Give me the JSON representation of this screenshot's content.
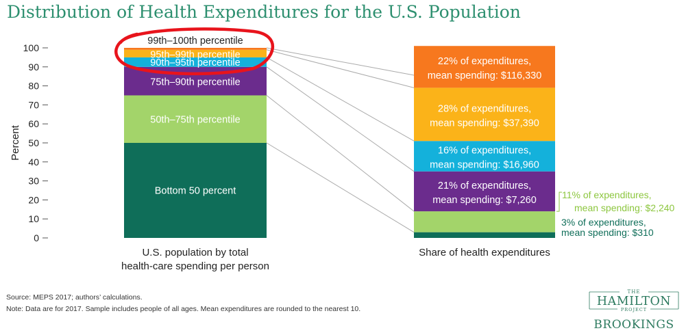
{
  "chart_data": {
    "type": "bar",
    "subtype": "stacked-100-percent",
    "title": "Distribution of Health Expenditures for the U.S. Population",
    "ylabel": "Percent",
    "ylim": [
      0,
      100
    ],
    "yticks": [
      0,
      10,
      20,
      30,
      40,
      50,
      60,
      70,
      80,
      90,
      100
    ],
    "categories": [
      "U.S. population by total health-care spending per person",
      "Share of health expenditures"
    ],
    "category_lines": [
      [
        "U.S. population by total",
        "health-care spending per person"
      ],
      [
        "Share of health expenditures"
      ]
    ],
    "series": [
      {
        "name": "Bottom 50 percent",
        "color": "#0f6e59",
        "population": 50,
        "share": 3,
        "mean_spending": 310,
        "share_lines": [
          "3% of expenditures,",
          "mean spending: $310"
        ],
        "share_label_outside": true,
        "share_label_color": "#0f6e59"
      },
      {
        "name": "50th–75th percentile",
        "color": "#a3d46a",
        "population": 25,
        "share": 11,
        "mean_spending": 2240,
        "share_lines": [
          "11% of expenditures,",
          "mean spending: $2,240"
        ],
        "share_label_outside": true,
        "share_label_color": "#8cc63e"
      },
      {
        "name": "75th–90th percentile",
        "color": "#6b2c8d",
        "population": 15,
        "share": 21,
        "mean_spending": 7260,
        "share_lines": [
          "21% of expenditures,",
          "mean spending: $7,260"
        ],
        "share_label_outside": false
      },
      {
        "name": "90th–95th percentile",
        "color": "#14b1db",
        "population": 5,
        "share": 16,
        "mean_spending": 16960,
        "share_lines": [
          "16% of expenditures,",
          "mean spending: $16,960"
        ],
        "share_label_outside": false
      },
      {
        "name": "95th–99th percentile",
        "color": "#fbb319",
        "population": 4,
        "share": 28,
        "mean_spending": 37390,
        "share_lines": [
          "28% of expenditures,",
          "mean spending: $37,390"
        ],
        "share_label_outside": false
      },
      {
        "name": "99th–100th percentile",
        "color": "#f7781e",
        "population": 1,
        "share": 22,
        "mean_spending": 116330,
        "share_lines": [
          "22% of expenditures,",
          "mean spending: $116,330"
        ],
        "share_label_outside": false
      }
    ],
    "annotation": {
      "type": "hand-drawn circle",
      "color": "#e8141c",
      "target": "99th–100th percentile"
    }
  },
  "footer": {
    "source": "Source: MEPS 2017; authors’ calculations.",
    "note": "Note: Data are for 2017. Sample includes people of all ages. Mean expenditures are rounded to the nearest 10."
  },
  "logo": {
    "the": "THE",
    "hamilton": "HAMILTON",
    "project": "PROJECT",
    "brookings": "BROOKINGS",
    "color": "#2d7a5f"
  }
}
